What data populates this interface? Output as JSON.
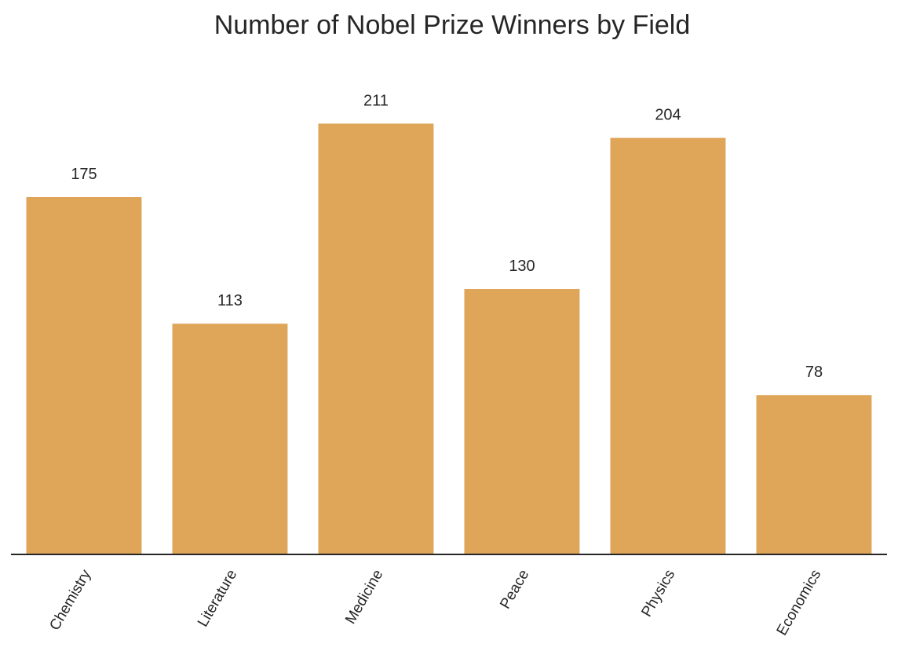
{
  "chart_data": {
    "type": "bar",
    "title": "Number of Nobel Prize Winners by Field",
    "xlabel": "",
    "ylabel": "",
    "categories": [
      "Chemistry",
      "Literature",
      "Medicine",
      "Peace",
      "Physics",
      "Economics"
    ],
    "values": [
      175,
      113,
      211,
      130,
      204,
      78
    ],
    "ylim": [
      0,
      240
    ],
    "grid": false,
    "legend": "none",
    "bar_color": "#dfa558",
    "axis_color": "#262626",
    "text_color": "#262626"
  }
}
